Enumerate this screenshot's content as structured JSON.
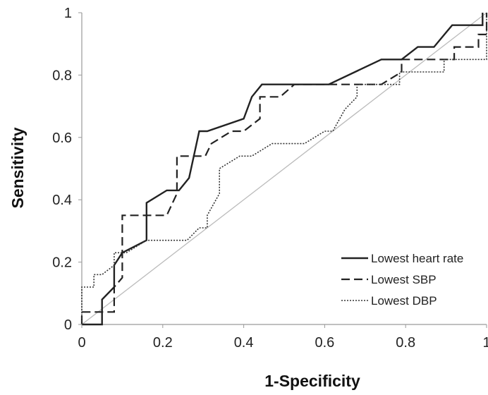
{
  "chart_data": {
    "type": "line",
    "title": "",
    "xlabel": "1-Specificity",
    "ylabel": "Sensitivity",
    "xlim": [
      0,
      1
    ],
    "ylim": [
      0,
      1
    ],
    "x_ticks": [
      "0",
      "0.2",
      "0.4",
      "0.6",
      "0.8",
      "1"
    ],
    "y_ticks": [
      "0",
      "0.2",
      "0.4",
      "0.6",
      "0.8",
      "1"
    ],
    "grid": false,
    "legend_position": "bottom-right",
    "reference_line": {
      "x": [
        0,
        1
      ],
      "y": [
        0,
        1
      ],
      "color": "#bbbbbb"
    },
    "series": [
      {
        "name": "Lowest heart rate",
        "style": "solid",
        "color": "#222222",
        "points": [
          [
            0,
            0
          ],
          [
            0.05,
            0
          ],
          [
            0.05,
            0.08
          ],
          [
            0.08,
            0.12
          ],
          [
            0.08,
            0.19
          ],
          [
            0.1,
            0.23
          ],
          [
            0.16,
            0.27
          ],
          [
            0.16,
            0.39
          ],
          [
            0.21,
            0.43
          ],
          [
            0.24,
            0.43
          ],
          [
            0.265,
            0.47
          ],
          [
            0.29,
            0.62
          ],
          [
            0.31,
            0.62
          ],
          [
            0.4,
            0.66
          ],
          [
            0.42,
            0.73
          ],
          [
            0.445,
            0.77
          ],
          [
            0.61,
            0.77
          ],
          [
            0.74,
            0.85
          ],
          [
            0.79,
            0.85
          ],
          [
            0.83,
            0.89
          ],
          [
            0.87,
            0.89
          ],
          [
            0.915,
            0.96
          ],
          [
            0.99,
            0.96
          ],
          [
            0.99,
            1.0
          ]
        ]
      },
      {
        "name": "Lowest SBP",
        "style": "dashed",
        "color": "#222222",
        "points": [
          [
            0,
            0
          ],
          [
            0,
            0.04
          ],
          [
            0.08,
            0.04
          ],
          [
            0.08,
            0.12
          ],
          [
            0.1,
            0.15
          ],
          [
            0.1,
            0.35
          ],
          [
            0.21,
            0.35
          ],
          [
            0.235,
            0.42
          ],
          [
            0.235,
            0.54
          ],
          [
            0.305,
            0.54
          ],
          [
            0.32,
            0.58
          ],
          [
            0.37,
            0.62
          ],
          [
            0.4,
            0.62
          ],
          [
            0.44,
            0.66
          ],
          [
            0.44,
            0.73
          ],
          [
            0.49,
            0.73
          ],
          [
            0.525,
            0.77
          ],
          [
            0.74,
            0.77
          ],
          [
            0.79,
            0.81
          ],
          [
            0.79,
            0.85
          ],
          [
            0.92,
            0.85
          ],
          [
            0.92,
            0.89
          ],
          [
            0.98,
            0.89
          ],
          [
            0.98,
            0.93
          ],
          [
            1.0,
            0.93
          ],
          [
            1.0,
            1.0
          ]
        ]
      },
      {
        "name": "Lowest DBP",
        "style": "dotted",
        "color": "#333333",
        "points": [
          [
            0,
            0
          ],
          [
            0,
            0.12
          ],
          [
            0.03,
            0.12
          ],
          [
            0.03,
            0.16
          ],
          [
            0.05,
            0.16
          ],
          [
            0.08,
            0.19
          ],
          [
            0.08,
            0.23
          ],
          [
            0.11,
            0.23
          ],
          [
            0.16,
            0.27
          ],
          [
            0.26,
            0.27
          ],
          [
            0.29,
            0.31
          ],
          [
            0.31,
            0.31
          ],
          [
            0.31,
            0.35
          ],
          [
            0.34,
            0.42
          ],
          [
            0.34,
            0.5
          ],
          [
            0.39,
            0.54
          ],
          [
            0.42,
            0.54
          ],
          [
            0.47,
            0.58
          ],
          [
            0.55,
            0.58
          ],
          [
            0.6,
            0.62
          ],
          [
            0.62,
            0.62
          ],
          [
            0.65,
            0.69
          ],
          [
            0.68,
            0.73
          ],
          [
            0.68,
            0.77
          ],
          [
            0.785,
            0.77
          ],
          [
            0.785,
            0.81
          ],
          [
            0.895,
            0.81
          ],
          [
            0.895,
            0.85
          ],
          [
            1.0,
            0.85
          ],
          [
            1.0,
            1.0
          ]
        ]
      }
    ]
  }
}
